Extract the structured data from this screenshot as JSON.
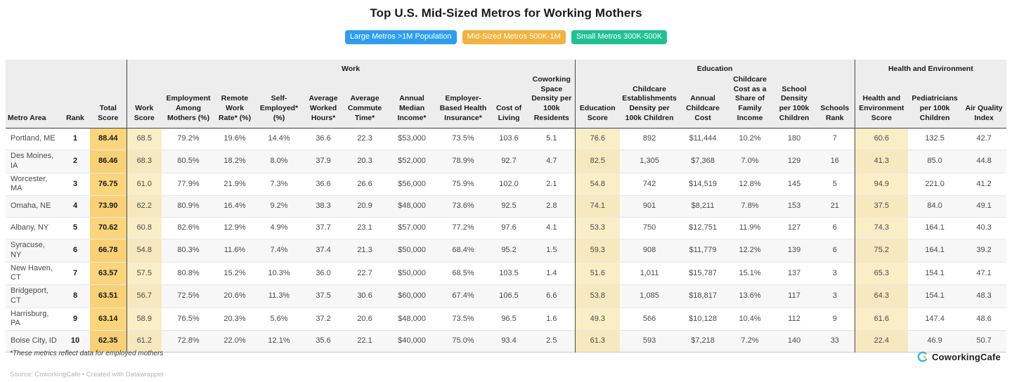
{
  "legend": {
    "items": [
      {
        "label": "Large Metros >1M Population",
        "color": "#2e9df0"
      },
      {
        "label": "Mid-Sized Metros 500K-1M",
        "color": "#f2b23e"
      },
      {
        "label": "Small Metros 300K-500K",
        "color": "#21c092"
      }
    ]
  },
  "chart_data": {
    "type": "table",
    "title": "Top U.S. Mid-Sized Metros for Working Mothers",
    "groups": [
      {
        "label": "",
        "span": 3
      },
      {
        "label": "Work",
        "span": 10
      },
      {
        "label": "Education",
        "span": 6
      },
      {
        "label": "Health and Environment",
        "span": 3
      }
    ],
    "columns": [
      {
        "key": "metro",
        "label": "Metro Area",
        "width": 78,
        "align": "left"
      },
      {
        "key": "rank",
        "label": "Rank",
        "width": 42,
        "align": "center",
        "bold": true
      },
      {
        "key": "total",
        "label": "Total Score",
        "width": 52,
        "align": "center",
        "highlight": "strong"
      },
      {
        "key": "work_score",
        "label": "Work Score",
        "width": 50,
        "align": "center",
        "highlight": "soft",
        "groupStart": true
      },
      {
        "key": "employment",
        "label": "Employment Among Mothers (%)",
        "width": 76,
        "align": "center"
      },
      {
        "key": "remote",
        "label": "Remote Work Rate* (%)",
        "width": 56,
        "align": "center"
      },
      {
        "key": "self_emp",
        "label": "Self-Employed* (%)",
        "width": 70,
        "align": "center"
      },
      {
        "key": "hours",
        "label": "Average Worked Hours*",
        "width": 56,
        "align": "center"
      },
      {
        "key": "commute",
        "label": "Average Commute Time*",
        "width": 62,
        "align": "center"
      },
      {
        "key": "income",
        "label": "Annual Median Income*",
        "width": 72,
        "align": "center"
      },
      {
        "key": "insurance",
        "label": "Employer-Based Health Insurance*",
        "width": 74,
        "align": "center"
      },
      {
        "key": "cost_living",
        "label": "Cost of Living",
        "width": 56,
        "align": "center"
      },
      {
        "key": "coworking",
        "label": "Coworking Space Density per 100k Residents",
        "width": 66,
        "align": "center"
      },
      {
        "key": "edu_score",
        "label": "Education Score",
        "width": 64,
        "align": "center",
        "highlight": "soft",
        "groupStart": true
      },
      {
        "key": "childcare_est",
        "label": "Childcare Establishments Density per 100k Children",
        "width": 84,
        "align": "center"
      },
      {
        "key": "childcare_cost",
        "label": "Annual Childcare Cost",
        "width": 68,
        "align": "center"
      },
      {
        "key": "childcare_share",
        "label": "Childcare Cost as a Share of Family Income",
        "width": 66,
        "align": "center"
      },
      {
        "key": "school_density",
        "label": "School Density per 100k Children",
        "width": 60,
        "align": "center"
      },
      {
        "key": "schools_rank",
        "label": "Schools Rank",
        "width": 56,
        "align": "center"
      },
      {
        "key": "he_score",
        "label": "Health and Environment Score",
        "width": 76,
        "align": "center",
        "highlight": "soft",
        "groupStart": true
      },
      {
        "key": "pediatricians",
        "label": "Pediatricians per 100k Children",
        "width": 76,
        "align": "center"
      },
      {
        "key": "aqi",
        "label": "Air Quality Index",
        "width": 64,
        "align": "center"
      }
    ],
    "rows": [
      [
        "Portland, ME",
        "1",
        "88.44",
        "68.5",
        "79.2%",
        "19.6%",
        "14.4%",
        "36.6",
        "22.3",
        "$53,000",
        "73.5%",
        "103.6",
        "5.1",
        "76.6",
        "892",
        "$11,444",
        "10.2%",
        "180",
        "7",
        "60.6",
        "132.5",
        "42.7"
      ],
      [
        "Des Moines, IA",
        "2",
        "86.46",
        "68.3",
        "80.5%",
        "18.2%",
        "8.0%",
        "37.9",
        "20.3",
        "$52,000",
        "78.9%",
        "92.7",
        "4.7",
        "82.5",
        "1,305",
        "$7,368",
        "7.0%",
        "129",
        "16",
        "41.3",
        "85.0",
        "44.8"
      ],
      [
        "Worcester, MA",
        "3",
        "76.75",
        "61.0",
        "77.9%",
        "21.9%",
        "7.3%",
        "36.6",
        "26.6",
        "$56,000",
        "75.9%",
        "102.0",
        "2.1",
        "54.8",
        "742",
        "$14,519",
        "12.8%",
        "145",
        "5",
        "94.9",
        "221.0",
        "41.2"
      ],
      [
        "Omaha, NE",
        "4",
        "73.90",
        "62.2",
        "80.9%",
        "16.4%",
        "9.2%",
        "38.3",
        "20.9",
        "$48,000",
        "73.6%",
        "92.5",
        "2.8",
        "74.1",
        "901",
        "$8,211",
        "7.8%",
        "153",
        "21",
        "37.5",
        "84.0",
        "49.1"
      ],
      [
        "Albany, NY",
        "5",
        "70.62",
        "60.8",
        "82.6%",
        "12.9%",
        "4.9%",
        "37.7",
        "23.1",
        "$57,000",
        "77.2%",
        "97.6",
        "4.1",
        "53.3",
        "750",
        "$12,751",
        "11.9%",
        "127",
        "6",
        "74.3",
        "164.1",
        "40.3"
      ],
      [
        "Syracuse, NY",
        "6",
        "66.78",
        "54.8",
        "80.3%",
        "11.6%",
        "7.4%",
        "37.4",
        "21.3",
        "$50,000",
        "68.4%",
        "95.2",
        "1.5",
        "59.3",
        "908",
        "$11,779",
        "12.2%",
        "139",
        "6",
        "75.2",
        "164.1",
        "39.2"
      ],
      [
        "New Haven, CT",
        "7",
        "63.57",
        "57.5",
        "80.8%",
        "15.2%",
        "10.3%",
        "36.0",
        "22.7",
        "$50,000",
        "68.5%",
        "103.5",
        "1.4",
        "51.6",
        "1,011",
        "$15,787",
        "15.1%",
        "137",
        "3",
        "65.3",
        "154.1",
        "47.1"
      ],
      [
        "Bridgeport, CT",
        "8",
        "63.51",
        "56.7",
        "72.5%",
        "20.6%",
        "11.3%",
        "37.5",
        "30.6",
        "$60,000",
        "67.4%",
        "106.5",
        "6.6",
        "53.8",
        "1,085",
        "$18,817",
        "13.6%",
        "117",
        "3",
        "64.3",
        "154.1",
        "48.3"
      ],
      [
        "Harrisburg, PA",
        "9",
        "63.14",
        "58.9",
        "76.5%",
        "20.3%",
        "5.6%",
        "37.2",
        "20.6",
        "$48,000",
        "73.5%",
        "96.5",
        "1.6",
        "49.3",
        "566",
        "$10,128",
        "10.4%",
        "112",
        "9",
        "61.6",
        "147.4",
        "48.6"
      ],
      [
        "Boise City, ID",
        "10",
        "62.35",
        "61.2",
        "72.8%",
        "22.0%",
        "12.1%",
        "35.6",
        "22.1",
        "$40,000",
        "75.0%",
        "93.4",
        "2.5",
        "61.3",
        "593",
        "$7,218",
        "7.2%",
        "140",
        "33",
        "22.4",
        "46.9",
        "50.7"
      ]
    ]
  },
  "footer": {
    "footnote": "*These metrics reflect data for employed mothers",
    "source": "Source: CoworkingCafe • Created with Datawrapper"
  },
  "logo": {
    "text": "CoworkingCafe",
    "icon_blue": "#35b6e9",
    "icon_yellow": "#f7c948"
  }
}
